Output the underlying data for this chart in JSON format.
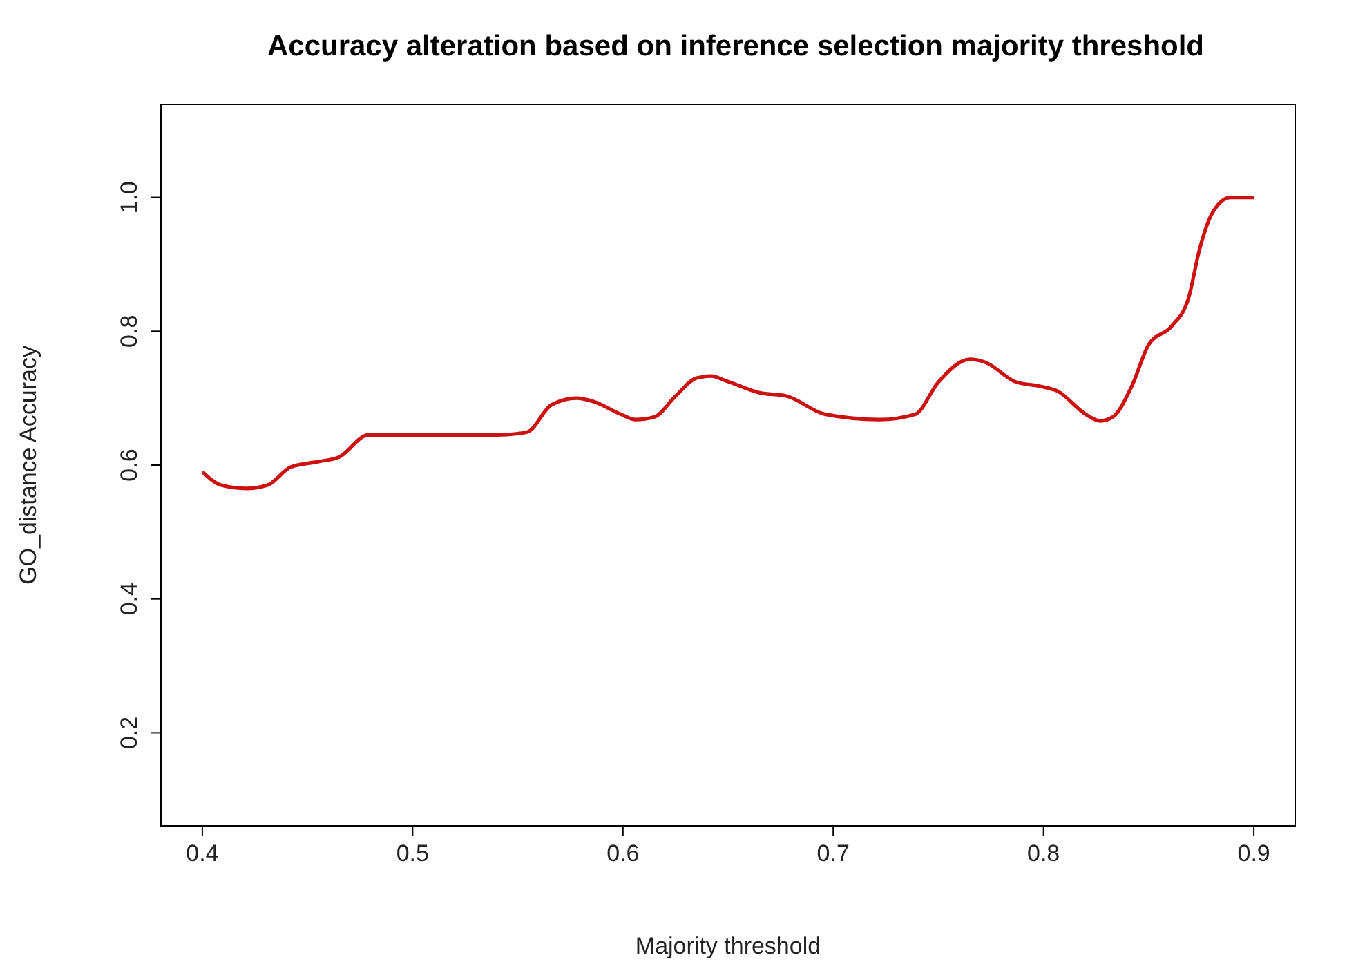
{
  "chart_data": {
    "type": "line",
    "title": "Accuracy alteration based on inference selection majority threshold",
    "xlabel": "Majority threshold",
    "ylabel": "GO_distance Accuracy",
    "x": [
      0.4,
      0.409,
      0.421,
      0.431,
      0.442,
      0.455,
      0.465,
      0.479,
      0.54,
      0.55,
      0.555,
      0.566,
      0.578,
      0.586,
      0.599,
      0.606,
      0.615,
      0.625,
      0.635,
      0.642,
      0.649,
      0.665,
      0.678,
      0.696,
      0.722,
      0.739,
      0.75,
      0.765,
      0.772,
      0.787,
      0.798,
      0.807,
      0.82,
      0.827,
      0.833,
      0.842,
      0.85,
      0.861,
      0.869,
      0.874,
      0.88,
      0.889,
      0.9
    ],
    "series": [
      {
        "color": "#cc1111",
        "values": [
          0.59,
          0.57,
          0.565,
          0.57,
          0.597,
          0.605,
          0.612,
          0.645,
          0.645,
          0.647,
          0.65,
          0.69,
          0.7,
          0.695,
          0.676,
          0.668,
          0.672,
          0.703,
          0.73,
          0.733,
          0.726,
          0.708,
          0.703,
          0.676,
          0.668,
          0.676,
          0.724,
          0.758,
          0.754,
          0.724,
          0.718,
          0.71,
          0.676,
          0.666,
          0.672,
          0.718,
          0.78,
          0.808,
          0.85,
          0.92,
          0.975,
          1.0,
          1.0
        ]
      }
    ],
    "xlim": [
      0.38,
      0.92
    ],
    "xticks": [
      0.4,
      0.5,
      0.6,
      0.7,
      0.8,
      0.9
    ],
    "ylim": [
      0.06,
      1.14
    ],
    "yticks": [
      0.2,
      0.4,
      0.6,
      0.8,
      {
        "value": 1,
        "label": "1.0"
      }
    ],
    "grid": false,
    "legend": false,
    "marker": "none",
    "line_style": "solid"
  }
}
